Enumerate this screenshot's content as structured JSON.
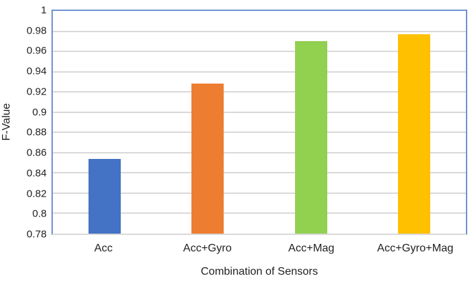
{
  "chart_data": {
    "type": "bar",
    "title": "",
    "xlabel": "Combination of Sensors",
    "ylabel": "F-Value",
    "categories": [
      "Acc",
      "Acc+Gyro",
      "Acc+Mag",
      "Acc+Gyro+Mag"
    ],
    "values": [
      0.854,
      0.928,
      0.97,
      0.977
    ],
    "bar_colors": [
      "#4472C4",
      "#ED7D31",
      "#92D050",
      "#FFC000"
    ],
    "ylim": [
      0.78,
      1.0
    ],
    "ytick_step": 0.02,
    "ytick_labels": [
      "1",
      "0.98",
      "0.96",
      "0.94",
      "0.92",
      "0.9",
      "0.88",
      "0.86",
      "0.84",
      "0.82",
      "0.8",
      "0.78"
    ],
    "grid": true,
    "gridline_color": "#D9D9D9",
    "plot_border_color": "#6E92D2",
    "axis_line_color": "#D9D9D9",
    "legend_position": "none",
    "plot_background": "#ffffff"
  }
}
